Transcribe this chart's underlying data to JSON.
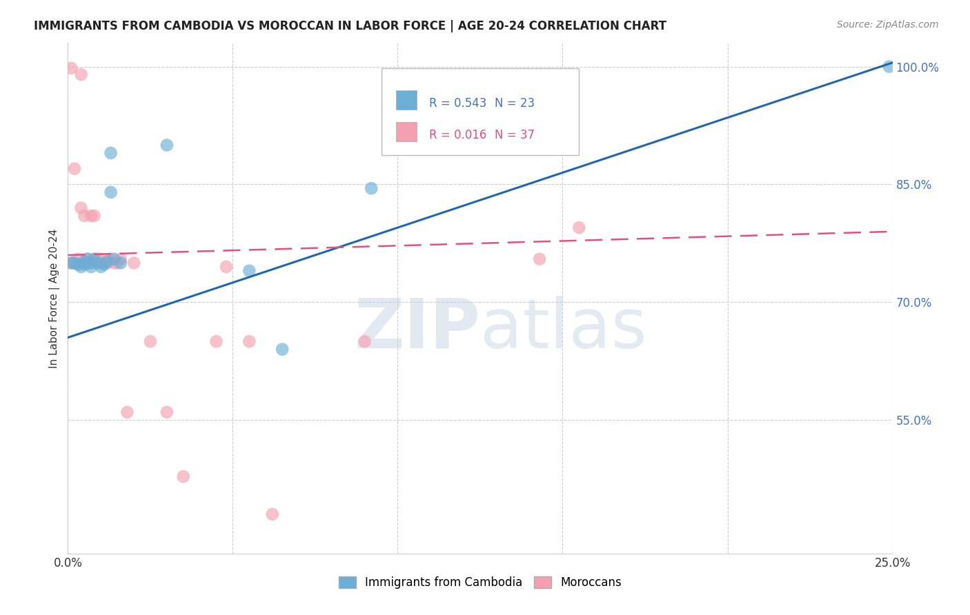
{
  "title": "IMMIGRANTS FROM CAMBODIA VS MOROCCAN IN LABOR FORCE | AGE 20-24 CORRELATION CHART",
  "source": "Source: ZipAtlas.com",
  "ylabel": "In Labor Force | Age 20-24",
  "ytick_vals": [
    0.55,
    0.7,
    0.85,
    1.0
  ],
  "ytick_labels": [
    "55.0%",
    "70.0%",
    "85.0%",
    "100.0%"
  ],
  "xtick_vals": [
    0.0,
    0.05,
    0.1,
    0.15,
    0.2,
    0.25
  ],
  "xtick_labels": [
    "0.0%",
    "",
    "",
    "",
    "",
    "25.0%"
  ],
  "xlim": [
    0.0,
    0.25
  ],
  "ylim": [
    0.38,
    1.03
  ],
  "cambodia_color": "#6baed6",
  "moroccan_color": "#f4a0b0",
  "trend_cambodia_color": "#2166ac",
  "trend_moroccan_color": "#e05080",
  "watermark": "ZIPatlas",
  "legend_cambodia_R": "R = 0.543",
  "legend_cambodia_N": "N = 23",
  "legend_moroccan_R": "R = 0.016",
  "legend_moroccan_N": "N = 37",
  "legend_cambodia_label": "Immigrants from Cambodia",
  "legend_moroccan_label": "Moroccans",
  "cambodia_x": [
    0.001,
    0.002,
    0.003,
    0.004,
    0.005,
    0.005,
    0.006,
    0.007,
    0.007,
    0.008,
    0.009,
    0.01,
    0.011,
    0.012,
    0.013,
    0.013,
    0.014,
    0.016,
    0.03,
    0.055,
    0.065,
    0.092,
    0.249
  ],
  "cambodia_y": [
    0.75,
    0.75,
    0.748,
    0.745,
    0.752,
    0.748,
    0.755,
    0.75,
    0.745,
    0.755,
    0.75,
    0.745,
    0.748,
    0.752,
    0.89,
    0.84,
    0.755,
    0.75,
    0.9,
    0.74,
    0.64,
    0.845,
    1.0
  ],
  "moroccan_x": [
    0.001,
    0.001,
    0.002,
    0.002,
    0.003,
    0.004,
    0.004,
    0.005,
    0.005,
    0.006,
    0.006,
    0.007,
    0.007,
    0.008,
    0.008,
    0.009,
    0.009,
    0.01,
    0.01,
    0.011,
    0.012,
    0.013,
    0.014,
    0.015,
    0.016,
    0.018,
    0.02,
    0.025,
    0.03,
    0.035,
    0.045,
    0.048,
    0.055,
    0.062,
    0.09,
    0.143,
    0.155
  ],
  "moroccan_y": [
    0.998,
    0.75,
    0.87,
    0.75,
    0.755,
    0.99,
    0.82,
    0.81,
    0.75,
    0.755,
    0.75,
    0.81,
    0.75,
    0.81,
    0.755,
    0.75,
    0.755,
    0.755,
    0.75,
    0.75,
    0.75,
    0.755,
    0.75,
    0.75,
    0.755,
    0.56,
    0.75,
    0.65,
    0.56,
    0.478,
    0.65,
    0.745,
    0.65,
    0.43,
    0.65,
    0.755,
    0.795
  ],
  "camb_trend_x0": 0.0,
  "camb_trend_y0": 0.655,
  "camb_trend_x1": 0.25,
  "camb_trend_y1": 1.005,
  "moroc_trend_x0": 0.0,
  "moroc_trend_y0": 0.76,
  "moroc_trend_x1": 0.25,
  "moroc_trend_y1": 0.79
}
